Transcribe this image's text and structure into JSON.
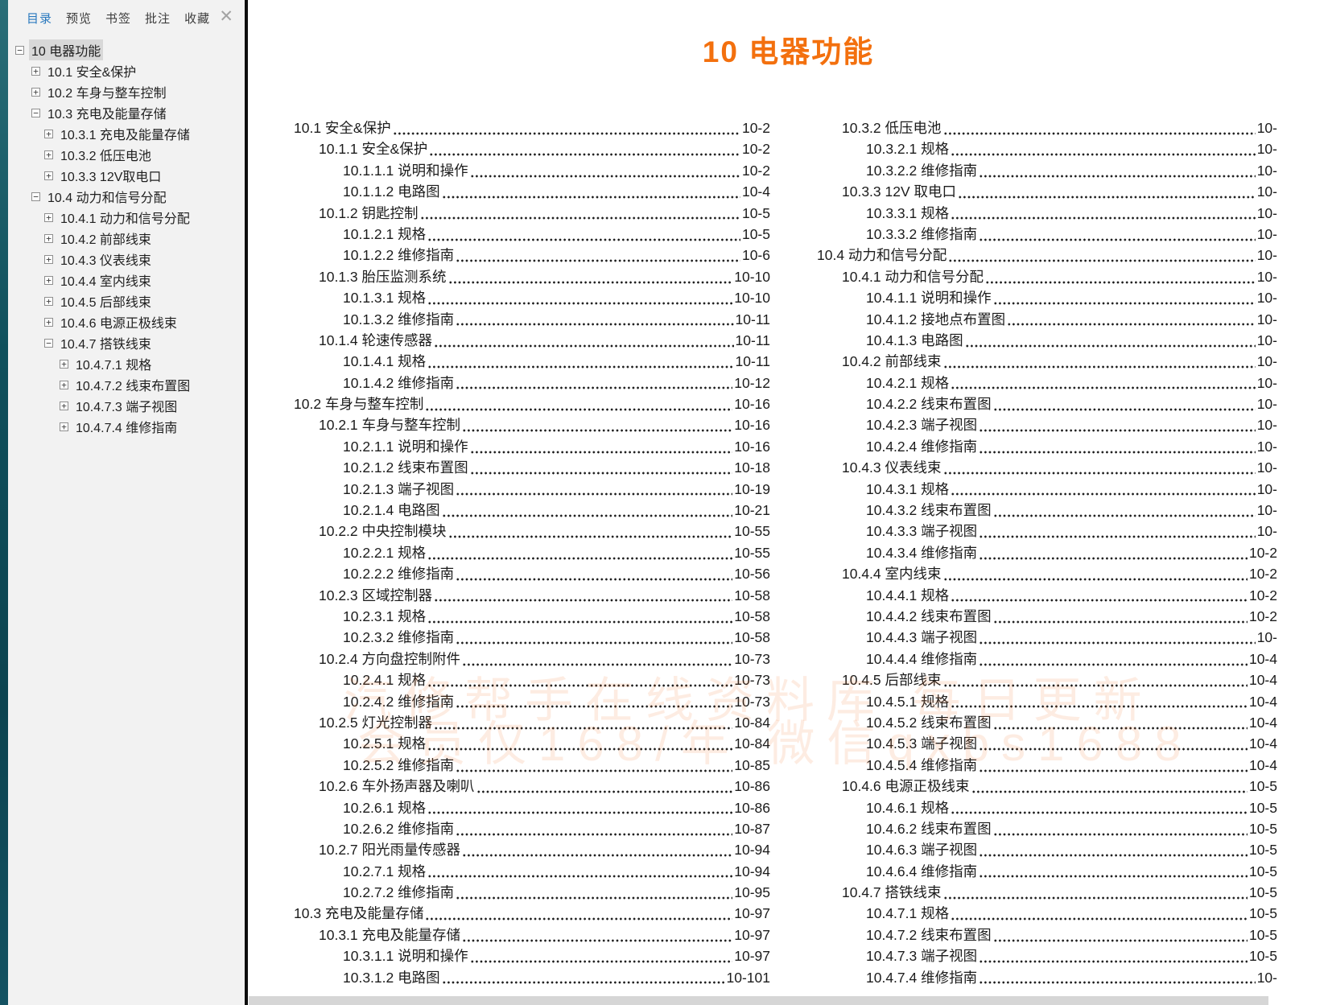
{
  "colors": {
    "accent": "#f3700e",
    "active_tab_blue": "#2878be",
    "watermark": "rgba(243,112,33,0.13)"
  },
  "sidebar": {
    "tabs": [
      {
        "name": "contents",
        "label": "目录",
        "active": true
      },
      {
        "name": "preview",
        "label": "预览",
        "active": false
      },
      {
        "name": "bookmarks",
        "label": "书签",
        "active": false
      },
      {
        "name": "annotations",
        "label": "批注",
        "active": false
      },
      {
        "name": "favorites",
        "label": "收藏",
        "active": false
      }
    ],
    "close_glyph": "✕",
    "tree": [
      {
        "label": "10 电器功能",
        "level": 0,
        "expander": "minus",
        "selected": true
      },
      {
        "label": "10.1 安全&保护",
        "level": 1,
        "expander": "plus",
        "selected": false
      },
      {
        "label": "10.2 车身与整车控制",
        "level": 1,
        "expander": "plus",
        "selected": false
      },
      {
        "label": "10.3 充电及能量存储",
        "level": 1,
        "expander": "minus",
        "selected": false
      },
      {
        "label": "10.3.1 充电及能量存储",
        "level": 2,
        "expander": "plus",
        "selected": false
      },
      {
        "label": "10.3.2 低压电池",
        "level": 2,
        "expander": "plus",
        "selected": false
      },
      {
        "label": "10.3.3 12V取电口",
        "level": 2,
        "expander": "plus",
        "selected": false
      },
      {
        "label": "10.4 动力和信号分配",
        "level": 1,
        "expander": "minus",
        "selected": false
      },
      {
        "label": "10.4.1 动力和信号分配",
        "level": 2,
        "expander": "plus",
        "selected": false
      },
      {
        "label": "10.4.2 前部线束",
        "level": 2,
        "expander": "plus",
        "selected": false
      },
      {
        "label": "10.4.3 仪表线束",
        "level": 2,
        "expander": "plus",
        "selected": false
      },
      {
        "label": "10.4.4 室内线束",
        "level": 2,
        "expander": "plus",
        "selected": false
      },
      {
        "label": "10.4.5 后部线束",
        "level": 2,
        "expander": "plus",
        "selected": false
      },
      {
        "label": "10.4.6 电源正极线束",
        "level": 2,
        "expander": "plus",
        "selected": false
      },
      {
        "label": "10.4.7 搭铁线束",
        "level": 2,
        "expander": "minus",
        "selected": false
      },
      {
        "label": "10.4.7.1 规格",
        "level": 3,
        "expander": "plus",
        "selected": false
      },
      {
        "label": "10.4.7.2 线束布置图",
        "level": 3,
        "expander": "plus",
        "selected": false
      },
      {
        "label": "10.4.7.3 端子视图",
        "level": 3,
        "expander": "plus",
        "selected": false
      },
      {
        "label": "10.4.7.4 维修指南",
        "level": 3,
        "expander": "plus",
        "selected": false
      }
    ]
  },
  "page": {
    "title": "10 电器功能",
    "watermark": {
      "line1": "汽修帮手在线资料库 每日更新",
      "line2": "会员仅168/年 微信qxbs1688"
    },
    "toc_left": [
      {
        "title": "10.1 安全&保护",
        "page": "10-2",
        "level": 1
      },
      {
        "title": "10.1.1 安全&保护",
        "page": "10-2",
        "level": 2
      },
      {
        "title": "10.1.1.1 说明和操作",
        "page": "10-2",
        "level": 3
      },
      {
        "title": "10.1.1.2 电路图",
        "page": "10-4",
        "level": 3
      },
      {
        "title": "10.1.2 钥匙控制",
        "page": "10-5",
        "level": 2
      },
      {
        "title": "10.1.2.1 规格",
        "page": "10-5",
        "level": 3
      },
      {
        "title": "10.1.2.2 维修指南",
        "page": "10-6",
        "level": 3
      },
      {
        "title": "10.1.3 胎压监测系统",
        "page": "10-10",
        "level": 2
      },
      {
        "title": "10.1.3.1 规格",
        "page": "10-10",
        "level": 3
      },
      {
        "title": "10.1.3.2 维修指南",
        "page": "10-11",
        "level": 3
      },
      {
        "title": "10.1.4 轮速传感器",
        "page": "10-11",
        "level": 2
      },
      {
        "title": "10.1.4.1 规格",
        "page": "10-11",
        "level": 3
      },
      {
        "title": "10.1.4.2 维修指南",
        "page": "10-12",
        "level": 3
      },
      {
        "title": "10.2 车身与整车控制",
        "page": "10-16",
        "level": 1
      },
      {
        "title": "10.2.1 车身与整车控制",
        "page": "10-16",
        "level": 2
      },
      {
        "title": "10.2.1.1 说明和操作",
        "page": "10-16",
        "level": 3
      },
      {
        "title": "10.2.1.2 线束布置图",
        "page": "10-18",
        "level": 3
      },
      {
        "title": "10.2.1.3 端子视图",
        "page": "10-19",
        "level": 3
      },
      {
        "title": "10.2.1.4 电路图",
        "page": "10-21",
        "level": 3
      },
      {
        "title": "10.2.2 中央控制模块",
        "page": "10-55",
        "level": 2
      },
      {
        "title": "10.2.2.1 规格",
        "page": "10-55",
        "level": 3
      },
      {
        "title": "10.2.2.2 维修指南",
        "page": "10-56",
        "level": 3
      },
      {
        "title": "10.2.3 区域控制器",
        "page": "10-58",
        "level": 2
      },
      {
        "title": "10.2.3.1 规格",
        "page": "10-58",
        "level": 3
      },
      {
        "title": "10.2.3.2 维修指南",
        "page": "10-58",
        "level": 3
      },
      {
        "title": "10.2.4 方向盘控制附件",
        "page": "10-73",
        "level": 2
      },
      {
        "title": "10.2.4.1 规格",
        "page": "10-73",
        "level": 3
      },
      {
        "title": "10.2.4.2 维修指南",
        "page": "10-73",
        "level": 3
      },
      {
        "title": "10.2.5 灯光控制器",
        "page": "10-84",
        "level": 2
      },
      {
        "title": "10.2.5.1 规格",
        "page": "10-84",
        "level": 3
      },
      {
        "title": "10.2.5.2 维修指南",
        "page": "10-85",
        "level": 3
      },
      {
        "title": "10.2.6 车外扬声器及喇叭",
        "page": "10-86",
        "level": 2
      },
      {
        "title": "10.2.6.1 规格",
        "page": "10-86",
        "level": 3
      },
      {
        "title": "10.2.6.2 维修指南",
        "page": "10-87",
        "level": 3
      },
      {
        "title": "10.2.7 阳光雨量传感器",
        "page": "10-94",
        "level": 2
      },
      {
        "title": "10.2.7.1 规格",
        "page": "10-94",
        "level": 3
      },
      {
        "title": "10.2.7.2 维修指南",
        "page": "10-95",
        "level": 3
      },
      {
        "title": "10.3 充电及能量存储",
        "page": "10-97",
        "level": 1
      },
      {
        "title": "10.3.1 充电及能量存储",
        "page": "10-97",
        "level": 2
      },
      {
        "title": "10.3.1.1 说明和操作",
        "page": "10-97",
        "level": 3
      },
      {
        "title": "10.3.1.2 电路图",
        "page": "10-101",
        "level": 3
      }
    ],
    "toc_right": [
      {
        "title": "10.3.2 低压电池",
        "page": "10-",
        "level": 2
      },
      {
        "title": "10.3.2.1 规格",
        "page": "10-",
        "level": 3
      },
      {
        "title": "10.3.2.2 维修指南",
        "page": "10-",
        "level": 3
      },
      {
        "title": "10.3.3 12V 取电口",
        "page": "10-",
        "level": 2
      },
      {
        "title": "10.3.3.1 规格",
        "page": "10-",
        "level": 3
      },
      {
        "title": "10.3.3.2 维修指南",
        "page": "10-",
        "level": 3
      },
      {
        "title": "10.4 动力和信号分配",
        "page": "10-",
        "level": 1
      },
      {
        "title": "10.4.1 动力和信号分配",
        "page": "10-",
        "level": 2
      },
      {
        "title": "10.4.1.1 说明和操作",
        "page": "10-",
        "level": 3
      },
      {
        "title": "10.4.1.2 接地点布置图",
        "page": "10-",
        "level": 3
      },
      {
        "title": "10.4.1.3 电路图",
        "page": "10-",
        "level": 3
      },
      {
        "title": "10.4.2 前部线束",
        "page": "10-",
        "level": 2
      },
      {
        "title": "10.4.2.1 规格",
        "page": "10-",
        "level": 3
      },
      {
        "title": "10.4.2.2 线束布置图",
        "page": "10-",
        "level": 3
      },
      {
        "title": "10.4.2.3 端子视图",
        "page": "10-",
        "level": 3
      },
      {
        "title": "10.4.2.4 维修指南",
        "page": "10-",
        "level": 3
      },
      {
        "title": "10.4.3 仪表线束",
        "page": "10-",
        "level": 2
      },
      {
        "title": "10.4.3.1 规格",
        "page": "10-",
        "level": 3
      },
      {
        "title": "10.4.3.2 线束布置图",
        "page": "10-",
        "level": 3
      },
      {
        "title": "10.4.3.3 端子视图",
        "page": "10-",
        "level": 3
      },
      {
        "title": "10.4.3.4 维修指南",
        "page": "10-2",
        "level": 3
      },
      {
        "title": "10.4.4 室内线束",
        "page": "10-2",
        "level": 2
      },
      {
        "title": "10.4.4.1 规格",
        "page": "10-2",
        "level": 3
      },
      {
        "title": "10.4.4.2 线束布置图",
        "page": "10-2",
        "level": 3
      },
      {
        "title": "10.4.4.3 端子视图",
        "page": "10-",
        "level": 3
      },
      {
        "title": "10.4.4.4 维修指南",
        "page": "10-4",
        "level": 3
      },
      {
        "title": "10.4.5 后部线束",
        "page": "10-4",
        "level": 2
      },
      {
        "title": "10.4.5.1 规格",
        "page": "10-4",
        "level": 3
      },
      {
        "title": "10.4.5.2 线束布置图",
        "page": "10-4",
        "level": 3
      },
      {
        "title": "10.4.5.3 端子视图",
        "page": "10-4",
        "level": 3
      },
      {
        "title": "10.4.5.4 维修指南",
        "page": "10-4",
        "level": 3
      },
      {
        "title": "10.4.6 电源正极线束",
        "page": "10-5",
        "level": 2
      },
      {
        "title": "10.4.6.1 规格",
        "page": "10-5",
        "level": 3
      },
      {
        "title": "10.4.6.2 线束布置图",
        "page": "10-5",
        "level": 3
      },
      {
        "title": "10.4.6.3 端子视图",
        "page": "10-5",
        "level": 3
      },
      {
        "title": "10.4.6.4 维修指南",
        "page": "10-5",
        "level": 3
      },
      {
        "title": "10.4.7 搭铁线束",
        "page": "10-5",
        "level": 2
      },
      {
        "title": "10.4.7.1 规格",
        "page": "10-5",
        "level": 3
      },
      {
        "title": "10.4.7.2 线束布置图",
        "page": "10-5",
        "level": 3
      },
      {
        "title": "10.4.7.3 端子视图",
        "page": "10-5",
        "level": 3
      },
      {
        "title": "10.4.7.4 维修指南",
        "page": "10-",
        "level": 3
      }
    ]
  }
}
